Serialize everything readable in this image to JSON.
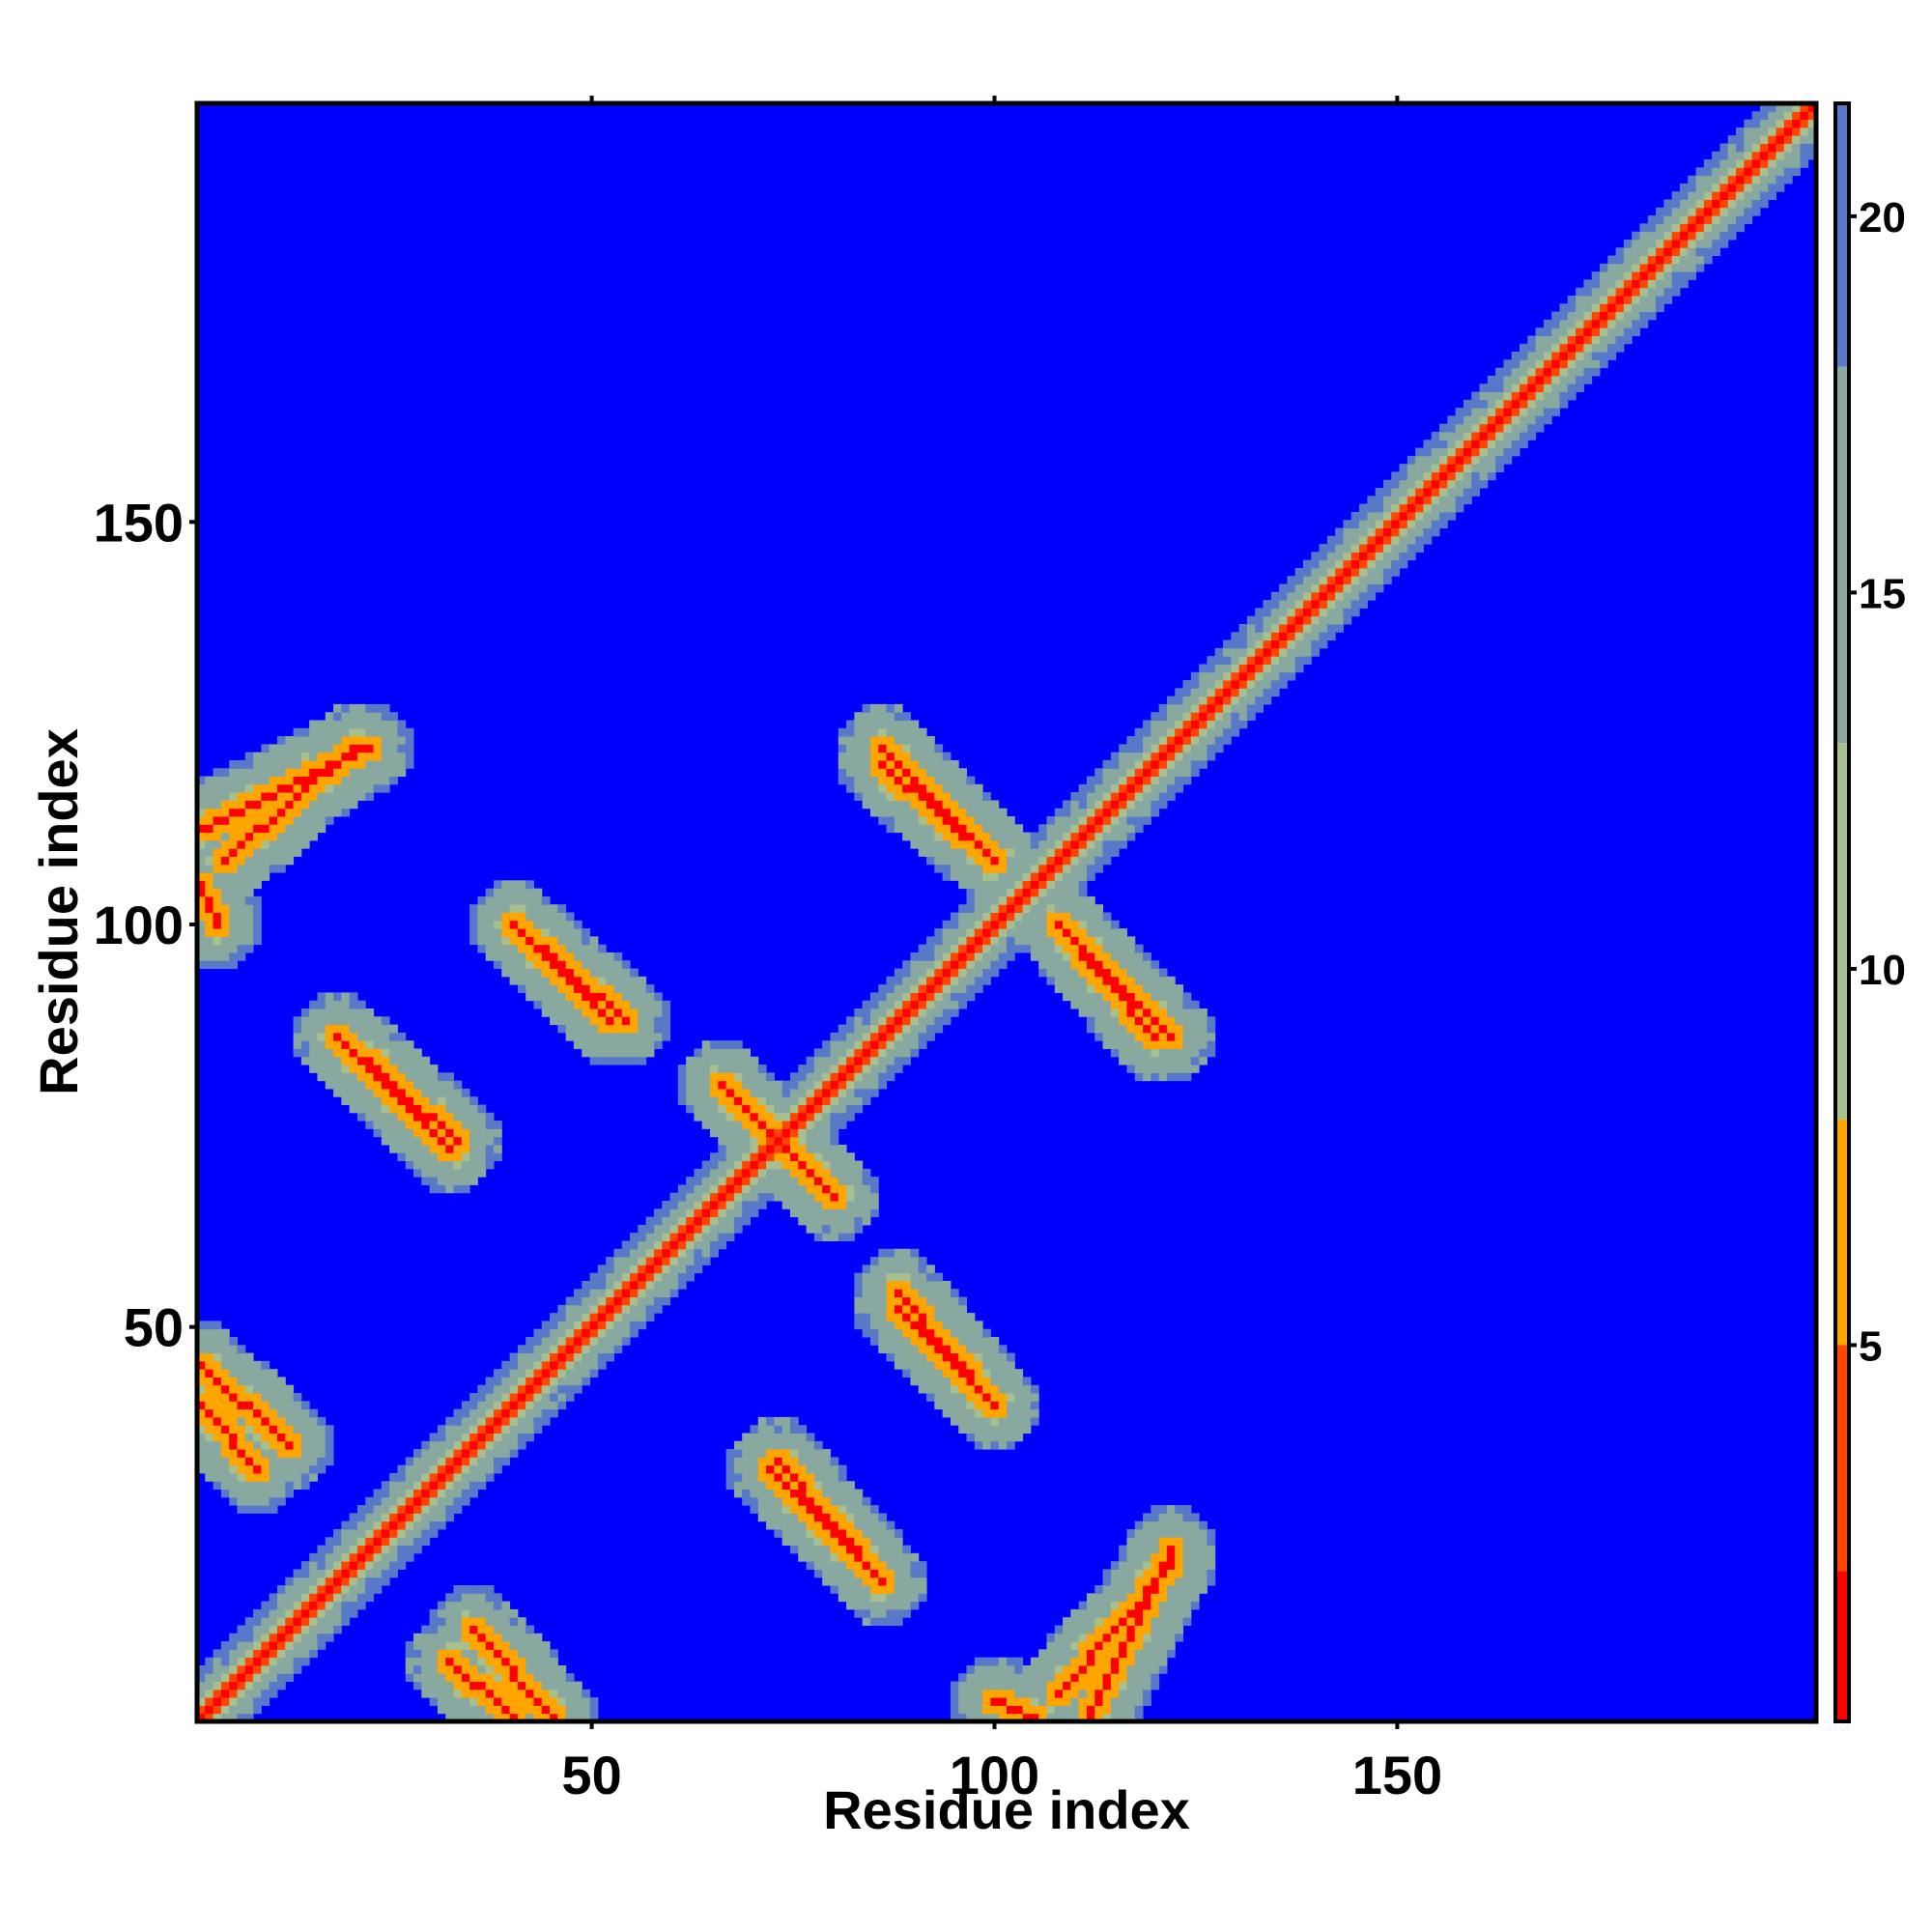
{
  "chart_data": {
    "type": "heatmap",
    "title": "",
    "xlabel": "Residue index",
    "ylabel": "Residue index",
    "xlim": [
      1,
      202
    ],
    "ylim": [
      1,
      202
    ],
    "x_ticks": [
      50,
      100,
      150
    ],
    "y_ticks": [
      50,
      100,
      150
    ],
    "x_tick_labels": [
      "50",
      "100",
      "150"
    ],
    "y_tick_labels": [
      "50",
      "100",
      "150"
    ],
    "colorbar": {
      "range": [
        0,
        21.5
      ],
      "ticks": [
        5,
        10,
        15,
        20
      ],
      "tick_labels": [
        "5",
        "10",
        "15",
        "20"
      ],
      "bands": [
        {
          "from": 0,
          "to": 2,
          "color": "#ff0000"
        },
        {
          "from": 2,
          "to": 5,
          "color": "#ff4500"
        },
        {
          "from": 5,
          "to": 8,
          "color": "#ffa500"
        },
        {
          "from": 8,
          "to": 13,
          "color": "#a8c090"
        },
        {
          "from": 13,
          "to": 18,
          "color": "#88a8a0"
        },
        {
          "from": 18,
          "to": 21.5,
          "color": "#5878c8"
        }
      ],
      "above_color": "#0000ff"
    },
    "description_of_values": "pairwise residue distance map; values >= 21.5 shown as blue background",
    "contacts": {
      "background_value": 25,
      "diagonal": {
        "from": 1,
        "to": 202
      },
      "offdiagonal_segments": [
        {
          "i1": 1,
          "j1": 112,
          "i2": 22,
          "j2": 122
        },
        {
          "i1": 1,
          "j1": 45,
          "i2": 12,
          "j2": 35
        },
        {
          "i1": 40,
          "j1": 100,
          "i2": 52,
          "j2": 88
        },
        {
          "i1": 18,
          "j1": 86,
          "i2": 33,
          "j2": 73
        },
        {
          "i1": 86,
          "j1": 120,
          "i2": 100,
          "j2": 108
        },
        {
          "i1": 108,
          "j1": 100,
          "i2": 122,
          "j2": 86
        },
        {
          "i1": 66,
          "j1": 80,
          "i2": 80,
          "j2": 66
        },
        {
          "i1": 88,
          "j1": 54,
          "i2": 100,
          "j2": 40
        },
        {
          "i1": 72,
          "j1": 32,
          "i2": 84,
          "j2": 20
        },
        {
          "i1": 108,
          "j1": 4,
          "i2": 122,
          "j2": 20
        },
        {
          "i1": 32,
          "j1": 8,
          "i2": 40,
          "j2": 1
        },
        {
          "i1": 100,
          "j1": 3,
          "i2": 105,
          "j2": 1
        }
      ]
    }
  }
}
